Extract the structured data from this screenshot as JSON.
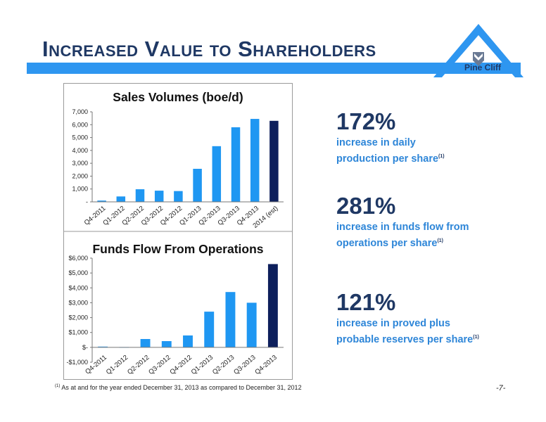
{
  "page": {
    "title": "Increased Value to Shareholders",
    "logo_text": "Pine Cliff",
    "footnote_marker": "(1)",
    "footnote_text": "As at and for the year ended December 31, 2013 as compared to December 31, 2012",
    "page_number": "-7-"
  },
  "colors": {
    "bar": "#1f97f2",
    "bar_highlight": "#0d1f5c",
    "band": "#2e96f0",
    "title": "#1f3864",
    "stat_desc": "#2e86d8"
  },
  "stats": [
    {
      "value": "172%",
      "line1": "increase in daily",
      "line2": "production per share",
      "marker": "(1)"
    },
    {
      "value": "281%",
      "line1": "increase in funds flow from",
      "line2": "operations per share",
      "marker": "(1)"
    },
    {
      "value": "121%",
      "line1": "increase in proved plus",
      "line2": "probable reserves per share",
      "marker": "(1)"
    }
  ],
  "chart_data": [
    {
      "type": "bar",
      "title": "Sales Volumes (boe/d)",
      "categories": [
        "Q4-2011",
        "Q1-2012",
        "Q2-2012",
        "Q3-2012",
        "Q4-2012",
        "Q1-2013",
        "Q2-2013",
        "Q3-2013",
        "Q4-2013",
        "2014 (est)"
      ],
      "values": [
        100,
        420,
        980,
        870,
        840,
        2570,
        4330,
        5800,
        6450,
        6300
      ],
      "ylim": [
        0,
        7000
      ],
      "yticks": [
        0,
        1000,
        2000,
        3000,
        4000,
        5000,
        6000,
        7000
      ],
      "ytick_labels": [
        "-",
        "1,000",
        "2,000",
        "3,000",
        "4,000",
        "5,000",
        "6,000",
        "7,000"
      ],
      "highlight_index": 9,
      "grid": false,
      "legend": "none"
    },
    {
      "type": "bar",
      "title": "Funds Flow From Operations",
      "categories": [
        "Q4-2011",
        "Q1-2012",
        "Q2-2012",
        "Q3-2012",
        "Q4-2012",
        "Q1-2013",
        "Q2-2013",
        "Q3-2013",
        "Q4-2013"
      ],
      "values": [
        50,
        20,
        560,
        420,
        800,
        2400,
        3720,
        3000,
        5600
      ],
      "ylim": [
        -1000,
        6000
      ],
      "yticks": [
        -1000,
        0,
        1000,
        2000,
        3000,
        4000,
        5000,
        6000
      ],
      "ytick_labels": [
        "-$1,000",
        "$-",
        "$1,000",
        "$2,000",
        "$3,000",
        "$4,000",
        "$5,000",
        "$6,000"
      ],
      "highlight_index": 8,
      "grid": false,
      "legend": "none"
    }
  ]
}
